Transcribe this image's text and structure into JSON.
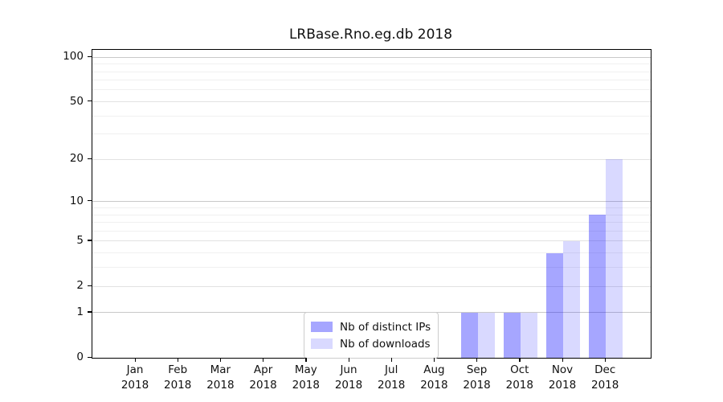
{
  "title": "LRBase.Rno.eg.db 2018",
  "chart_data": {
    "type": "bar",
    "categories": [
      "Jan 2018",
      "Feb 2018",
      "Mar 2018",
      "Apr 2018",
      "May 2018",
      "Jun 2018",
      "Jul 2018",
      "Aug 2018",
      "Sep 2018",
      "Oct 2018",
      "Nov 2018",
      "Dec 2018"
    ],
    "months": [
      "Jan",
      "Feb",
      "Mar",
      "Apr",
      "May",
      "Jun",
      "Jul",
      "Aug",
      "Sep",
      "Oct",
      "Nov",
      "Dec"
    ],
    "year": "2018",
    "series": [
      {
        "name": "Nb of distinct IPs",
        "color": "#0000ff59",
        "values": [
          0,
          0,
          0,
          0,
          0,
          0,
          0,
          0,
          1,
          1,
          4,
          8
        ]
      },
      {
        "name": "Nb of downloads",
        "color": "#0000ff26",
        "values": [
          0,
          0,
          0,
          0,
          0,
          0,
          0,
          0,
          1,
          1,
          5,
          20
        ]
      }
    ],
    "yscale": "log1p",
    "ylim": [
      0,
      112
    ],
    "yticks": [
      0,
      1,
      2,
      5,
      10,
      20,
      50,
      100
    ],
    "yticks_minor": [
      3,
      4,
      6,
      7,
      8,
      9,
      30,
      40,
      60,
      70,
      80,
      90
    ],
    "grid": true,
    "legend_position": "lower center",
    "grid_colors": {
      "decade": "#c9c9c9",
      "major": "#e2e2e2",
      "minor": "#f0f0f0"
    }
  }
}
